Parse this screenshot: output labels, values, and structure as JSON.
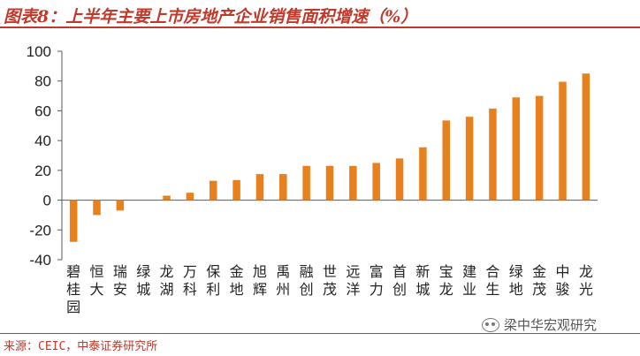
{
  "header": {
    "title": "图表8：上半年主要上市房地产企业销售面积增速（%）"
  },
  "footer": {
    "source": "来源：CEIC，中泰证券研究所"
  },
  "watermark": {
    "text": "梁中华宏观研究",
    "icon": "wechat-icon"
  },
  "colors": {
    "bar": "#e8801e",
    "accent": "#c0392b",
    "axis": "#595959"
  },
  "chart_data": {
    "type": "bar",
    "title": "",
    "xlabel": "",
    "ylabel": "",
    "ylim": [
      -40,
      100
    ],
    "yticks": [
      -40,
      -20,
      0,
      20,
      40,
      60,
      80,
      100
    ],
    "grid": false,
    "categories": [
      "碧桂园",
      "恒大",
      "瑞安",
      "绿城",
      "龙湖",
      "万科",
      "保利",
      "金地",
      "旭辉",
      "禹州",
      "融创",
      "世茂",
      "远洋",
      "富力",
      "首创",
      "新城",
      "宝龙",
      "建业",
      "合生",
      "绿地",
      "金茂",
      "中骏",
      "龙光"
    ],
    "values": [
      -28,
      -10,
      -7,
      0,
      3,
      5,
      13,
      13.5,
      17.5,
      17.5,
      23,
      23,
      23,
      25,
      28,
      35.5,
      53.5,
      56,
      61.5,
      69,
      70,
      79.5,
      85
    ]
  }
}
